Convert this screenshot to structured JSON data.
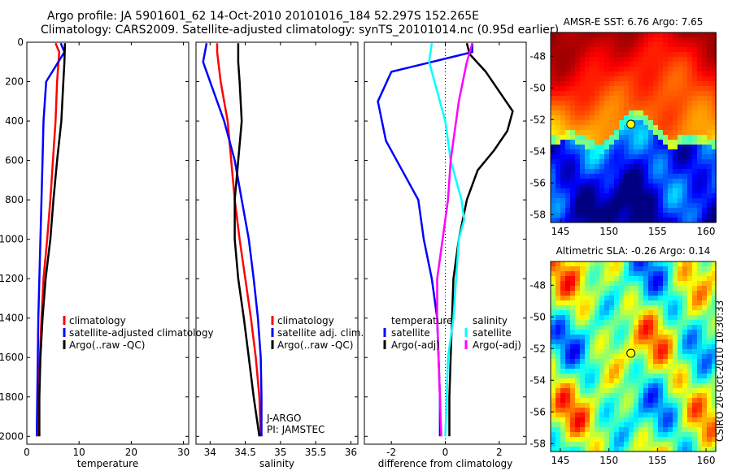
{
  "header": {
    "line1": "Argo profile: JA 5901601_62 14-Oct-2010 20101016_184 52.297S 152.265E",
    "line2": "Climatology: CARS2009. Satellite-adjusted climatology: synTS_20101014.nc (0.95d earlier)"
  },
  "stamp": "CSIRO 20-Oct-2010 10:30:33",
  "chart_data": [
    {
      "type": "line",
      "xlabel": "temperature",
      "xlim": [
        0,
        31
      ],
      "ylim": [
        2040,
        0
      ],
      "xticks": [
        0,
        10,
        20,
        30
      ],
      "yticks": [
        0,
        200,
        400,
        600,
        800,
        1000,
        1200,
        1400,
        1600,
        1800,
        2000
      ],
      "series": [
        {
          "name": "climatology",
          "color": "#ff0000",
          "points": [
            [
              5.5,
              5
            ],
            [
              6.2,
              50
            ],
            [
              5.8,
              200
            ],
            [
              5.5,
              400
            ],
            [
              5.0,
              600
            ],
            [
              4.5,
              800
            ],
            [
              3.9,
              1000
            ],
            [
              3.2,
              1200
            ],
            [
              2.8,
              1400
            ],
            [
              2.5,
              1600
            ],
            [
              2.3,
              1800
            ],
            [
              2.2,
              2000
            ]
          ]
        },
        {
          "name": "satellite-adjusted climatology",
          "color": "#0000ff",
          "points": [
            [
              6.5,
              5
            ],
            [
              7.2,
              50
            ],
            [
              3.7,
              200
            ],
            [
              3.2,
              400
            ],
            [
              3.0,
              600
            ],
            [
              2.8,
              800
            ],
            [
              2.6,
              1000
            ],
            [
              2.4,
              1200
            ],
            [
              2.2,
              1400
            ],
            [
              2.1,
              1600
            ],
            [
              2.0,
              1800
            ],
            [
              1.9,
              2000
            ]
          ]
        },
        {
          "name": "Argo(..raw -QC)",
          "color": "#000000",
          "points": [
            [
              7.3,
              5
            ],
            [
              7.2,
              100
            ],
            [
              7.0,
              200
            ],
            [
              6.6,
              400
            ],
            [
              5.8,
              600
            ],
            [
              5.1,
              800
            ],
            [
              4.5,
              1000
            ],
            [
              3.6,
              1200
            ],
            [
              3.0,
              1400
            ],
            [
              2.6,
              1600
            ],
            [
              2.4,
              1800
            ],
            [
              2.4,
              2000
            ]
          ]
        }
      ],
      "legend_position": "lower-right"
    },
    {
      "type": "line",
      "xlabel": "salinity",
      "xlim": [
        33.8,
        36.1
      ],
      "ylim": [
        2040,
        0
      ],
      "xticks": [
        34,
        34.5,
        35,
        35.5,
        36
      ],
      "series": [
        {
          "name": "climatology",
          "color": "#ff0000",
          "points": [
            [
              34.1,
              5
            ],
            [
              34.1,
              50
            ],
            [
              34.15,
              200
            ],
            [
              34.25,
              400
            ],
            [
              34.3,
              600
            ],
            [
              34.35,
              800
            ],
            [
              34.42,
              1000
            ],
            [
              34.5,
              1200
            ],
            [
              34.58,
              1400
            ],
            [
              34.65,
              1600
            ],
            [
              34.7,
              1800
            ],
            [
              34.72,
              2000
            ]
          ]
        },
        {
          "name": "satellite adj. clim.",
          "color": "#0000ff",
          "points": [
            [
              33.95,
              5
            ],
            [
              33.9,
              100
            ],
            [
              34.0,
              200
            ],
            [
              34.2,
              400
            ],
            [
              34.35,
              600
            ],
            [
              34.45,
              800
            ],
            [
              34.55,
              1000
            ],
            [
              34.62,
              1200
            ],
            [
              34.68,
              1400
            ],
            [
              34.72,
              1600
            ],
            [
              34.73,
              1800
            ],
            [
              34.73,
              2000
            ]
          ]
        },
        {
          "name": "Argo(..raw -QC)",
          "color": "#000000",
          "points": [
            [
              34.4,
              5
            ],
            [
              34.4,
              100
            ],
            [
              34.42,
              200
            ],
            [
              34.45,
              400
            ],
            [
              34.4,
              600
            ],
            [
              34.35,
              800
            ],
            [
              34.35,
              1000
            ],
            [
              34.4,
              1200
            ],
            [
              34.48,
              1400
            ],
            [
              34.55,
              1600
            ],
            [
              34.62,
              1800
            ],
            [
              34.7,
              2000
            ]
          ]
        }
      ],
      "legend_position": "lower-right",
      "annotations": [
        "J-ARGO",
        "PI: JAMSTEC"
      ]
    },
    {
      "type": "line",
      "xlabel": "difference from climatology",
      "xlim": [
        -3.0,
        3.0
      ],
      "ylim": [
        2040,
        0
      ],
      "xticks": [
        -2,
        0,
        2
      ],
      "zero_line": true,
      "series": [
        {
          "name": "temperature satellite",
          "color": "#0000ff",
          "points": [
            [
              1.0,
              5
            ],
            [
              1.0,
              50
            ],
            [
              -2.0,
              150
            ],
            [
              -2.5,
              300
            ],
            [
              -2.2,
              500
            ],
            [
              -1.6,
              650
            ],
            [
              -1.0,
              800
            ],
            [
              -0.8,
              1000
            ],
            [
              -0.5,
              1200
            ],
            [
              -0.3,
              1400
            ],
            [
              -0.25,
              1600
            ],
            [
              -0.2,
              1800
            ],
            [
              -0.2,
              2000
            ]
          ]
        },
        {
          "name": "temperature Argo(-adj)",
          "color": "#000000",
          "points": [
            [
              0.8,
              5
            ],
            [
              0.9,
              60
            ],
            [
              1.5,
              150
            ],
            [
              2.5,
              350
            ],
            [
              2.3,
              450
            ],
            [
              1.8,
              550
            ],
            [
              1.2,
              650
            ],
            [
              0.8,
              800
            ],
            [
              0.5,
              1000
            ],
            [
              0.3,
              1200
            ],
            [
              0.25,
              1400
            ],
            [
              0.2,
              1600
            ],
            [
              0.15,
              1800
            ],
            [
              0.15,
              2000
            ]
          ]
        },
        {
          "name": "salinity satellite",
          "color": "#00ffff",
          "points": [
            [
              -0.5,
              5
            ],
            [
              -0.6,
              100
            ],
            [
              -0.4,
              200
            ],
            [
              0.0,
              400
            ],
            [
              0.2,
              600
            ],
            [
              0.6,
              800
            ],
            [
              0.7,
              900
            ],
            [
              0.5,
              1000
            ],
            [
              0.4,
              1200
            ],
            [
              0.3,
              1400
            ],
            [
              0.1,
              1600
            ],
            [
              0.05,
              1800
            ],
            [
              0.0,
              2000
            ]
          ]
        },
        {
          "name": "salinity Argo(-adj)",
          "color": "#ff00ff",
          "points": [
            [
              1.0,
              5
            ],
            [
              0.8,
              100
            ],
            [
              0.5,
              300
            ],
            [
              0.4,
              400
            ],
            [
              0.2,
              600
            ],
            [
              0.1,
              800
            ],
            [
              -0.1,
              1000
            ],
            [
              -0.3,
              1200
            ],
            [
              -0.3,
              1400
            ],
            [
              -0.25,
              1600
            ],
            [
              -0.2,
              1800
            ],
            [
              -0.15,
              2000
            ]
          ]
        }
      ],
      "legend_position": "lower-center",
      "legend_headers": [
        "temperature",
        "salinity"
      ],
      "legend_items": [
        "satellite",
        "Argo(-adj)"
      ]
    },
    {
      "type": "heatmap",
      "title": "AMSR-E SST: 6.76 Argo: 7.65",
      "xlim": [
        144,
        161
      ],
      "ylim": [
        -58.5,
        -46.5
      ],
      "xticks": [
        145,
        150,
        155,
        160
      ],
      "yticks": [
        -48,
        -50,
        -52,
        -54,
        -56,
        -58
      ],
      "marker": {
        "lon": 152.265,
        "lat": -52.297,
        "color": "#ffff00"
      }
    },
    {
      "type": "heatmap",
      "title": "Altimetric SLA: -0.26 Argo: 0.14",
      "xlim": [
        144,
        161
      ],
      "ylim": [
        -58.5,
        -46.5
      ],
      "xticks": [
        145,
        150,
        155,
        160
      ],
      "yticks": [
        -48,
        -50,
        -52,
        -54,
        -56,
        -58
      ],
      "marker": {
        "lon": 152.265,
        "lat": -52.297,
        "color": "#ffff00"
      }
    }
  ]
}
